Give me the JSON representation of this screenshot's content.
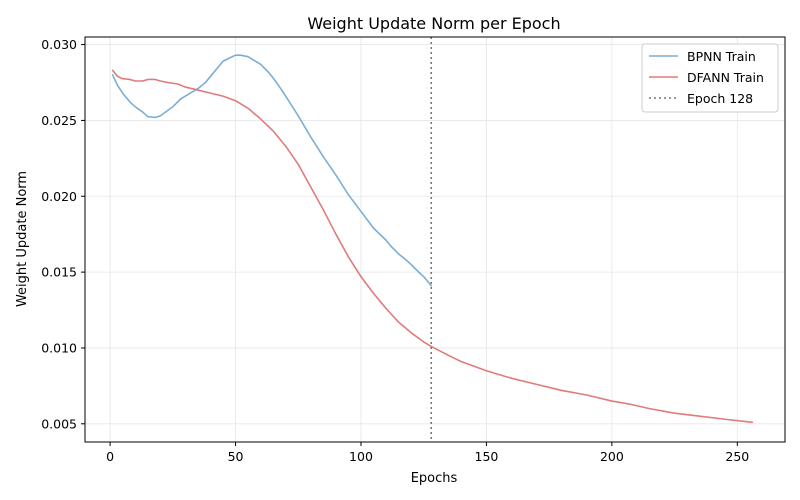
{
  "chart_data": {
    "type": "line",
    "title": "Weight Update Norm per Epoch",
    "xlabel": "Epochs",
    "ylabel": "Weight Update Norm",
    "xlim": [
      -10,
      269
    ],
    "ylim": [
      0.0038,
      0.0305
    ],
    "xticks": [
      0,
      50,
      100,
      150,
      200,
      250
    ],
    "yticks": [
      0.005,
      0.01,
      0.015,
      0.02,
      0.025,
      0.03
    ],
    "ytick_labels": [
      "0.005",
      "0.010",
      "0.015",
      "0.020",
      "0.025",
      "0.030"
    ],
    "grid": true,
    "legend_position": "top-right",
    "series": [
      {
        "name": "BPNN Train",
        "color": "#7aaed6",
        "x": [
          1,
          3,
          5,
          8,
          10,
          13,
          15,
          18,
          20,
          25,
          28,
          32,
          35,
          38,
          40,
          43,
          45,
          48,
          50,
          52,
          55,
          58,
          60,
          63,
          65,
          68,
          70,
          75,
          80,
          85,
          90,
          95,
          100,
          105,
          110,
          112,
          115,
          118,
          120,
          123,
          125,
          128
        ],
        "y": [
          0.028,
          0.0273,
          0.0268,
          0.0262,
          0.0259,
          0.02555,
          0.02525,
          0.0252,
          0.0253,
          0.0259,
          0.0264,
          0.0268,
          0.0271,
          0.0275,
          0.0279,
          0.0285,
          0.0289,
          0.02915,
          0.0293,
          0.0293,
          0.0292,
          0.0289,
          0.0287,
          0.0282,
          0.0278,
          0.0271,
          0.0266,
          0.0253,
          0.0239,
          0.0226,
          0.0214,
          0.0201,
          0.019,
          0.0179,
          0.0171,
          0.0167,
          0.0162,
          0.0158,
          0.0155,
          0.015,
          0.0147,
          0.0141
        ]
      },
      {
        "name": "DFANN Train",
        "color": "#e07b7b",
        "x": [
          1,
          3,
          5,
          8,
          10,
          13,
          15,
          18,
          20,
          23,
          27,
          30,
          35,
          40,
          45,
          50,
          55,
          60,
          65,
          70,
          75,
          80,
          85,
          90,
          95,
          100,
          105,
          110,
          115,
          120,
          125,
          128,
          135,
          140,
          150,
          160,
          170,
          180,
          190,
          200,
          207,
          215,
          225,
          235,
          245,
          256
        ],
        "y": [
          0.0283,
          0.0279,
          0.02775,
          0.0277,
          0.0276,
          0.0276,
          0.0277,
          0.0277,
          0.0276,
          0.0275,
          0.0274,
          0.0272,
          0.027,
          0.0268,
          0.0266,
          0.0263,
          0.0258,
          0.0251,
          0.0243,
          0.0233,
          0.0221,
          0.0206,
          0.0191,
          0.0175,
          0.016,
          0.0147,
          0.0136,
          0.0126,
          0.0117,
          0.011,
          0.0104,
          0.0101,
          0.0095,
          0.0091,
          0.0085,
          0.008,
          0.0076,
          0.0072,
          0.0069,
          0.0065,
          0.0063,
          0.006,
          0.0057,
          0.0055,
          0.0053,
          0.0051
        ]
      }
    ],
    "vline": {
      "label": "Epoch 128",
      "x": 128,
      "color": "#777777"
    }
  }
}
